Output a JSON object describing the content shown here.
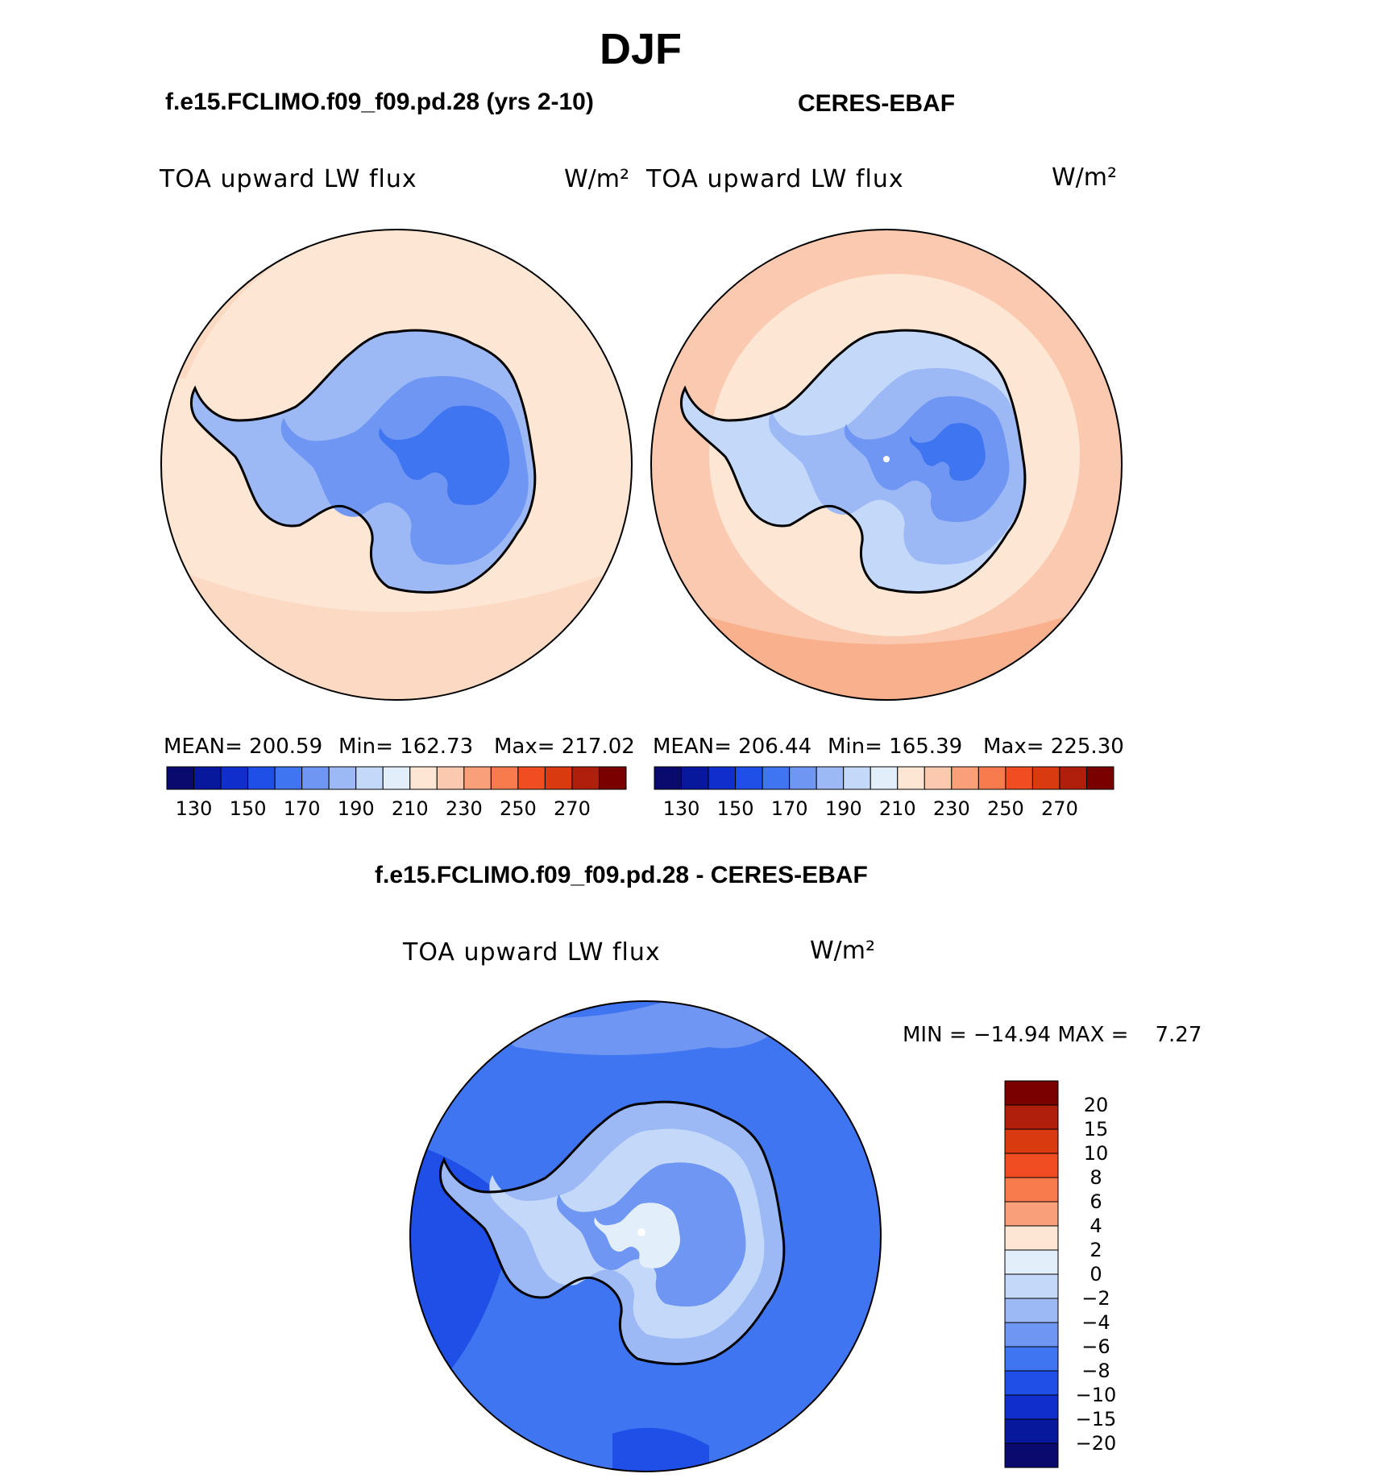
{
  "main_title": "DJF",
  "panels": [
    {
      "case_title": "f.e15.FCLIMO.f09_f09.pd.28 (yrs 2-10)",
      "variable": "TOA upward LW flux",
      "units": "W/m²",
      "stats": {
        "mean": "MEAN= 200.59",
        "min": "Min= 162.73",
        "max": "Max= 217.02"
      }
    },
    {
      "case_title": "CERES-EBAF",
      "variable": "TOA upward LW flux",
      "units": "W/m²",
      "stats": {
        "mean": "MEAN= 206.44",
        "min": "Min= 165.39",
        "max": "Max= 225.30"
      }
    }
  ],
  "top_colorbar": {
    "colors": [
      "#0a0a6e",
      "#08189c",
      "#0f2ecc",
      "#1f4fe6",
      "#3f75f0",
      "#6f96f2",
      "#9cb9f5",
      "#c4d9fa",
      "#e3eefb",
      "#fde6d3",
      "#fbc9af",
      "#f9a07a",
      "#f77b4d",
      "#f04e22",
      "#d93a10",
      "#b01f0c",
      "#7a0000"
    ],
    "tick_labels": [
      "130",
      "150",
      "170",
      "190",
      "210",
      "230",
      "250",
      "270"
    ]
  },
  "diff_panel": {
    "title": "f.e15.FCLIMO.f09_f09.pd.28 - CERES-EBAF",
    "variable": "TOA upward LW flux",
    "units": "W/m²",
    "minmax": "MIN = −14.94 MAX =    7.27"
  },
  "diff_colorbar": {
    "colors": [
      "#7a0000",
      "#b01f0c",
      "#d93a10",
      "#f04e22",
      "#f77b4d",
      "#f9a07a",
      "#fde6d3",
      "#e3eefb",
      "#c4d9fa",
      "#9cb9f5",
      "#6f96f2",
      "#3f75f0",
      "#1f4fe6",
      "#0f2ecc",
      "#08189c",
      "#0a0a6e"
    ],
    "tick_labels": [
      "20",
      "15",
      "10",
      "8",
      "6",
      "4",
      "2",
      "0",
      "−2",
      "−4",
      "−6",
      "−8",
      "−10",
      "−15",
      "−20"
    ]
  },
  "map_colors": {
    "ocean_model": "#fde6d3",
    "ocean_obs": "#fbc9af",
    "ocean_diff": "#3f75f0",
    "land_low": "#9cb9f5",
    "land_mid": "#6f96f2",
    "land_high": "#3f75f0",
    "coast": "#000000"
  }
}
